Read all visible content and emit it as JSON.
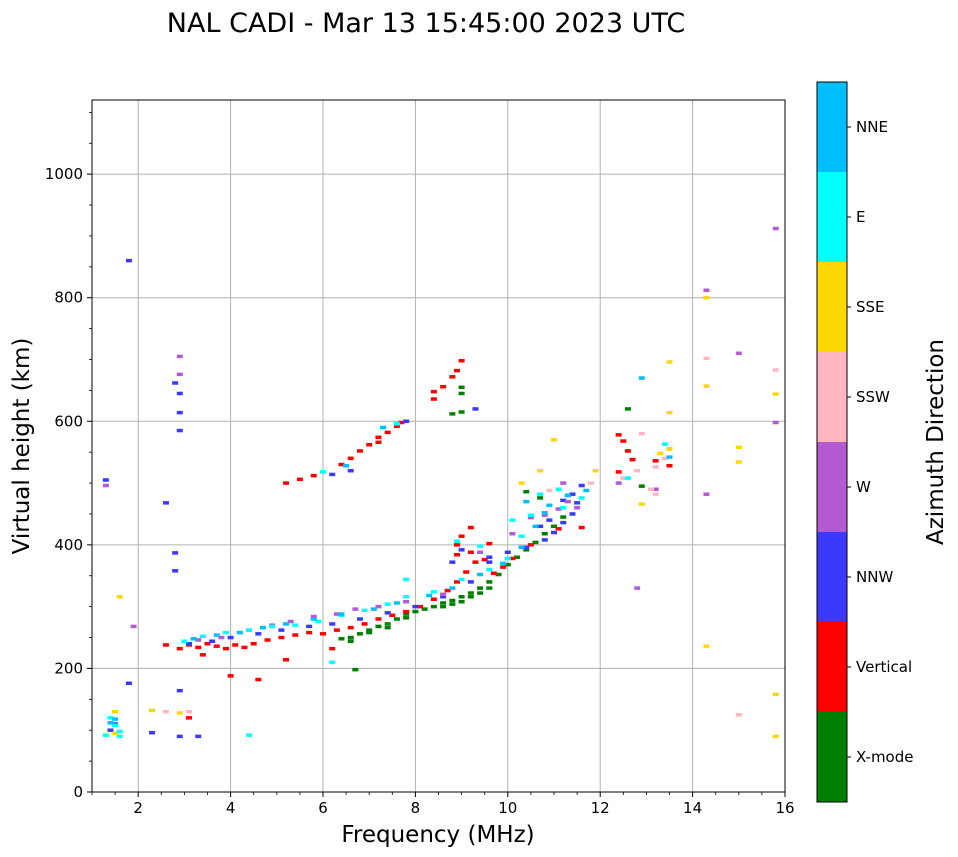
{
  "chart_data": {
    "type": "scatter",
    "title": "NAL CADI - Mar 13 15:45:00 2023 UTC",
    "xlabel": "Frequency (MHz)",
    "ylabel": "Virtual height (km)",
    "xlim": [
      1,
      16
    ],
    "ylim": [
      0,
      1120
    ],
    "xticks": [
      2,
      4,
      6,
      8,
      10,
      12,
      14,
      16
    ],
    "yticks": [
      0,
      200,
      400,
      600,
      800,
      1000
    ],
    "grid": true,
    "colorbar": {
      "label": "Azimuth Direction",
      "categories": [
        "X-mode",
        "Vertical",
        "NNW",
        "W",
        "SSW",
        "SSE",
        "E",
        "NNE"
      ],
      "colors": [
        "#008000",
        "#ff0000",
        "#3a3aff",
        "#b45ad2",
        "#ffb6c1",
        "#ffd700",
        "#00ffff",
        "#00bfff"
      ]
    },
    "series": [
      {
        "name": "X-mode",
        "color": "#008000",
        "points": [
          [
            6.6,
            250
          ],
          [
            6.8,
            256
          ],
          [
            7.0,
            262
          ],
          [
            7.2,
            268
          ],
          [
            7.4,
            272
          ],
          [
            7.6,
            280
          ],
          [
            7.8,
            288
          ],
          [
            8.0,
            292
          ],
          [
            8.2,
            296
          ],
          [
            8.4,
            300
          ],
          [
            8.6,
            306
          ],
          [
            8.8,
            310
          ],
          [
            9.0,
            316
          ],
          [
            9.2,
            322
          ],
          [
            9.4,
            330
          ],
          [
            9.6,
            340
          ],
          [
            9.8,
            352
          ],
          [
            10.0,
            368
          ],
          [
            10.2,
            380
          ],
          [
            10.4,
            392
          ],
          [
            10.6,
            404
          ],
          [
            10.8,
            418
          ],
          [
            11.0,
            430
          ],
          [
            11.2,
            445
          ],
          [
            8.6,
            300
          ],
          [
            8.8,
            304
          ],
          [
            9.0,
            308
          ],
          [
            9.2,
            316
          ],
          [
            9.4,
            322
          ],
          [
            9.6,
            330
          ],
          [
            6.4,
            248
          ],
          [
            6.6,
            244
          ],
          [
            7.0,
            258
          ],
          [
            7.4,
            266
          ],
          [
            7.8,
            282
          ],
          [
            8.8,
            612
          ],
          [
            9.0,
            615
          ],
          [
            12.6,
            620
          ],
          [
            12.9,
            495
          ],
          [
            13.5,
            528
          ],
          [
            9.0,
            645
          ],
          [
            9.0,
            655
          ],
          [
            10.4,
            486
          ],
          [
            10.7,
            476
          ],
          [
            11.3,
            480
          ],
          [
            6.7,
            198
          ]
        ]
      },
      {
        "name": "Vertical",
        "color": "#ff0000",
        "points": [
          [
            2.6,
            238
          ],
          [
            2.9,
            232
          ],
          [
            3.1,
            238
          ],
          [
            3.3,
            234
          ],
          [
            3.5,
            240
          ],
          [
            3.7,
            236
          ],
          [
            3.9,
            232
          ],
          [
            4.1,
            238
          ],
          [
            4.3,
            234
          ],
          [
            4.5,
            240
          ],
          [
            4.8,
            246
          ],
          [
            5.1,
            250
          ],
          [
            5.4,
            254
          ],
          [
            5.7,
            258
          ],
          [
            6.0,
            256
          ],
          [
            6.3,
            262
          ],
          [
            6.6,
            266
          ],
          [
            6.9,
            272
          ],
          [
            7.2,
            280
          ],
          [
            7.5,
            286
          ],
          [
            7.8,
            292
          ],
          [
            8.1,
            300
          ],
          [
            8.4,
            312
          ],
          [
            8.7,
            326
          ],
          [
            8.9,
            340
          ],
          [
            9.1,
            356
          ],
          [
            9.3,
            372
          ],
          [
            8.9,
            384
          ],
          [
            9.2,
            388
          ],
          [
            9.5,
            376
          ],
          [
            9.7,
            354
          ],
          [
            9.9,
            364
          ],
          [
            8.4,
            648
          ],
          [
            8.6,
            656
          ],
          [
            8.8,
            672
          ],
          [
            8.9,
            682
          ],
          [
            9.0,
            698
          ],
          [
            8.4,
            636
          ],
          [
            5.2,
            500
          ],
          [
            5.5,
            506
          ],
          [
            5.8,
            512
          ],
          [
            6.4,
            530
          ],
          [
            6.6,
            540
          ],
          [
            6.8,
            552
          ],
          [
            7.0,
            562
          ],
          [
            7.2,
            574
          ],
          [
            7.4,
            582
          ],
          [
            7.7,
            598
          ],
          [
            8.9,
            400
          ],
          [
            9.0,
            414
          ],
          [
            9.2,
            428
          ],
          [
            9.6,
            402
          ],
          [
            10.1,
            378
          ],
          [
            10.5,
            400
          ],
          [
            11.1,
            426
          ],
          [
            11.6,
            428
          ],
          [
            12.4,
            578
          ],
          [
            12.4,
            518
          ],
          [
            12.7,
            538
          ],
          [
            13.2,
            536
          ],
          [
            13.5,
            528
          ],
          [
            12.5,
            568
          ],
          [
            12.6,
            552
          ],
          [
            3.4,
            222
          ],
          [
            4.0,
            188
          ],
          [
            4.6,
            182
          ],
          [
            5.2,
            214
          ],
          [
            6.2,
            232
          ],
          [
            3.1,
            120
          ],
          [
            7.2,
            566
          ],
          [
            7.6,
            592
          ]
        ]
      },
      {
        "name": "NNW",
        "color": "#3a3aff",
        "points": [
          [
            3.1,
            240
          ],
          [
            3.6,
            244
          ],
          [
            4.0,
            250
          ],
          [
            4.6,
            256
          ],
          [
            5.1,
            262
          ],
          [
            5.7,
            268
          ],
          [
            6.2,
            272
          ],
          [
            6.8,
            280
          ],
          [
            7.4,
            290
          ],
          [
            8.0,
            300
          ],
          [
            8.6,
            316
          ],
          [
            9.2,
            340
          ],
          [
            9.6,
            372
          ],
          [
            10.0,
            388
          ],
          [
            10.4,
            396
          ],
          [
            10.8,
            408
          ],
          [
            11.0,
            420
          ],
          [
            11.2,
            436
          ],
          [
            11.4,
            450
          ],
          [
            11.5,
            468
          ],
          [
            11.4,
            482
          ],
          [
            11.6,
            496
          ],
          [
            10.9,
            440
          ],
          [
            9.6,
            380
          ],
          [
            9.0,
            392
          ],
          [
            8.8,
            372
          ],
          [
            6.6,
            520
          ],
          [
            7.8,
            600
          ],
          [
            6.2,
            514
          ],
          [
            11.2,
            472
          ],
          [
            10.7,
            430
          ],
          [
            1.8,
            860
          ],
          [
            2.8,
            662
          ],
          [
            2.9,
            645
          ],
          [
            2.9,
            614
          ],
          [
            2.9,
            585
          ],
          [
            2.6,
            468
          ],
          [
            2.8,
            387
          ],
          [
            2.8,
            358
          ],
          [
            1.3,
            505
          ],
          [
            1.8,
            176
          ],
          [
            2.9,
            164
          ],
          [
            1.5,
            110
          ],
          [
            1.4,
            100
          ],
          [
            2.3,
            96
          ],
          [
            3.3,
            90
          ],
          [
            2.9,
            90
          ],
          [
            9.3,
            620
          ]
        ]
      },
      {
        "name": "W",
        "color": "#b45ad2",
        "points": [
          [
            3.3,
            246
          ],
          [
            3.8,
            250
          ],
          [
            4.4,
            262
          ],
          [
            4.9,
            270
          ],
          [
            5.3,
            276
          ],
          [
            5.8,
            284
          ],
          [
            6.3,
            288
          ],
          [
            6.7,
            296
          ],
          [
            7.2,
            300
          ],
          [
            7.8,
            308
          ],
          [
            8.6,
            320
          ],
          [
            9.4,
            388
          ],
          [
            10.1,
            418
          ],
          [
            10.8,
            448
          ],
          [
            11.3,
            470
          ],
          [
            11.2,
            500
          ],
          [
            14.3,
            812
          ],
          [
            14.3,
            482
          ],
          [
            15.0,
            710
          ],
          [
            15.8,
            912
          ],
          [
            15.8,
            598
          ],
          [
            11.1,
            458
          ],
          [
            10.5,
            444
          ],
          [
            2.9,
            705
          ],
          [
            2.9,
            676
          ],
          [
            1.3,
            496
          ],
          [
            1.9,
            268
          ],
          [
            12.8,
            330
          ],
          [
            13.2,
            490
          ],
          [
            12.4,
            500
          ],
          [
            11.5,
            460
          ]
        ]
      },
      {
        "name": "SSW",
        "color": "#ffb6c1",
        "points": [
          [
            12.8,
            520
          ],
          [
            13.1,
            490
          ],
          [
            13.2,
            526
          ],
          [
            13.4,
            540
          ],
          [
            13.5,
            556
          ],
          [
            12.9,
            580
          ],
          [
            13.2,
            482
          ],
          [
            14.3,
            702
          ],
          [
            15.0,
            125
          ],
          [
            15.8,
            683
          ],
          [
            12.5,
            508
          ],
          [
            11.8,
            500
          ],
          [
            10.9,
            488
          ],
          [
            2.6,
            130
          ],
          [
            3.1,
            130
          ]
        ]
      },
      {
        "name": "SSE",
        "color": "#ffd700",
        "points": [
          [
            12.9,
            466
          ],
          [
            13.3,
            548
          ],
          [
            13.5,
            555
          ],
          [
            13.5,
            614
          ],
          [
            13.5,
            696
          ],
          [
            14.3,
            800
          ],
          [
            14.3,
            657
          ],
          [
            14.3,
            236
          ],
          [
            15.0,
            534
          ],
          [
            15.0,
            558
          ],
          [
            15.8,
            644
          ],
          [
            15.8,
            158
          ],
          [
            15.8,
            90
          ],
          [
            11.0,
            570
          ],
          [
            10.7,
            520
          ],
          [
            10.3,
            500
          ],
          [
            11.9,
            520
          ],
          [
            1.5,
            130
          ],
          [
            1.6,
            316
          ],
          [
            2.9,
            128
          ],
          [
            2.3,
            132
          ],
          [
            1.5,
            95
          ]
        ]
      },
      {
        "name": "E",
        "color": "#00ffff",
        "points": [
          [
            3.0,
            244
          ],
          [
            3.4,
            252
          ],
          [
            3.9,
            258
          ],
          [
            4.4,
            262
          ],
          [
            4.9,
            268
          ],
          [
            5.4,
            270
          ],
          [
            5.9,
            276
          ],
          [
            6.4,
            286
          ],
          [
            6.9,
            294
          ],
          [
            7.4,
            304
          ],
          [
            7.8,
            316
          ],
          [
            8.4,
            324
          ],
          [
            9.0,
            344
          ],
          [
            9.6,
            360
          ],
          [
            10.0,
            378
          ],
          [
            10.3,
            414
          ],
          [
            10.5,
            448
          ],
          [
            10.7,
            482
          ],
          [
            11.2,
            460
          ],
          [
            11.6,
            476
          ],
          [
            6.0,
            518
          ],
          [
            7.6,
            596
          ],
          [
            7.8,
            344
          ],
          [
            6.2,
            210
          ],
          [
            4.4,
            92
          ],
          [
            1.4,
            120
          ],
          [
            1.5,
            108
          ],
          [
            1.6,
            98
          ],
          [
            1.3,
            92
          ],
          [
            1.6,
            90
          ],
          [
            12.6,
            508
          ],
          [
            13.4,
            563
          ],
          [
            9.4,
            398
          ],
          [
            8.9,
            406
          ],
          [
            10.1,
            440
          ],
          [
            11.1,
            490
          ]
        ]
      },
      {
        "name": "NNE",
        "color": "#00bfff",
        "points": [
          [
            3.2,
            248
          ],
          [
            3.7,
            254
          ],
          [
            4.2,
            258
          ],
          [
            4.7,
            266
          ],
          [
            5.2,
            272
          ],
          [
            5.8,
            280
          ],
          [
            6.4,
            288
          ],
          [
            7.1,
            296
          ],
          [
            7.6,
            306
          ],
          [
            8.3,
            318
          ],
          [
            8.8,
            330
          ],
          [
            9.4,
            352
          ],
          [
            9.9,
            370
          ],
          [
            10.3,
            396
          ],
          [
            10.6,
            430
          ],
          [
            10.9,
            464
          ],
          [
            11.3,
            480
          ],
          [
            11.7,
            488
          ],
          [
            12.9,
            670
          ],
          [
            13.5,
            542
          ],
          [
            10.4,
            470
          ],
          [
            10.8,
            452
          ],
          [
            7.3,
            590
          ],
          [
            6.5,
            528
          ],
          [
            1.4,
            112
          ],
          [
            1.5,
            118
          ]
        ]
      }
    ]
  }
}
